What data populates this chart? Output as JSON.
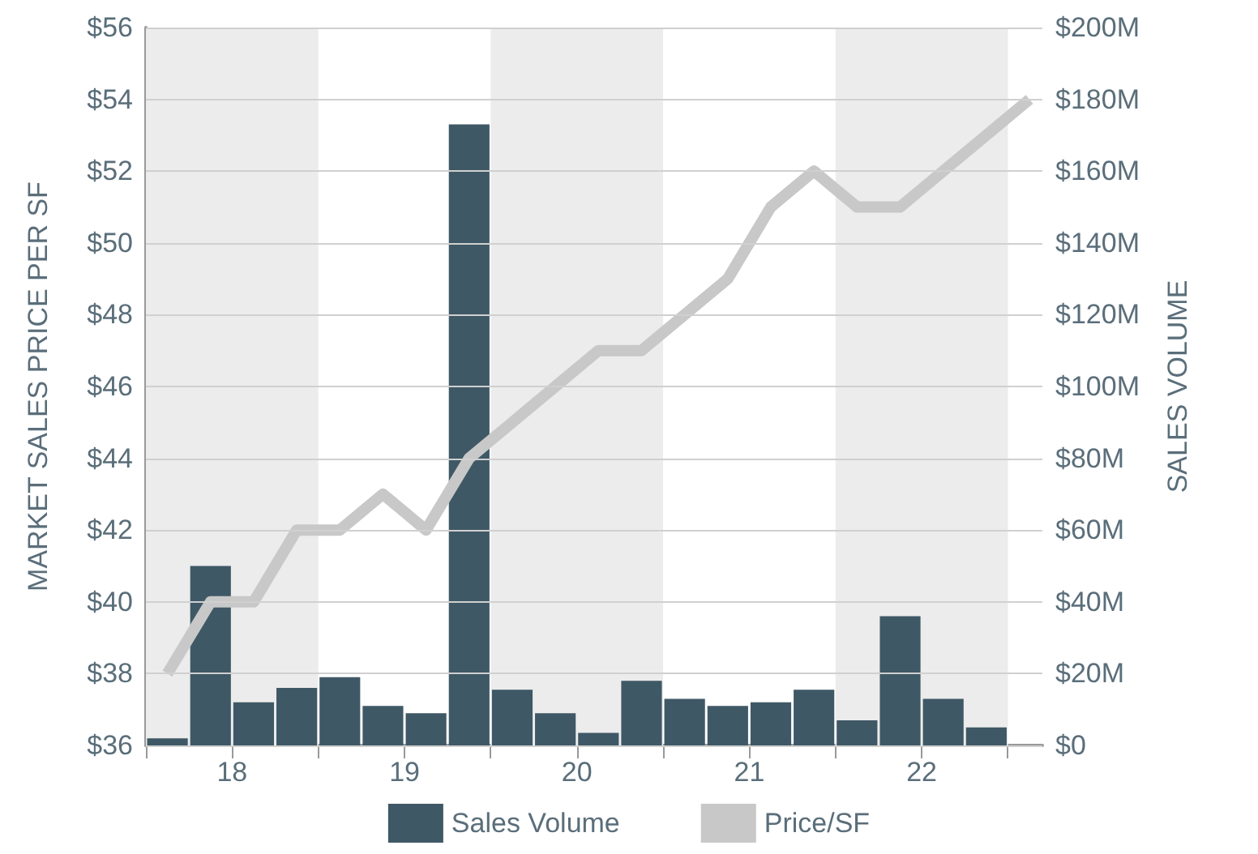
{
  "chart_data": {
    "type": "bar",
    "ylabel": "MARKET SALES PRICE PER SF",
    "y2label": "SALES VOLUME",
    "xlim": [
      17.5,
      22.7
    ],
    "xticks": [
      {
        "value": 17.5,
        "label": null
      },
      18,
      {
        "value": 18.5,
        "label": null
      },
      19,
      {
        "value": 19.5,
        "label": null
      },
      20,
      {
        "value": 20.5,
        "label": null
      },
      21,
      {
        "value": 21.5,
        "label": null
      },
      22,
      {
        "value": 22.5,
        "label": null
      }
    ],
    "ylim": [
      36,
      56
    ],
    "yticks": [
      {
        "value": 36,
        "label": "$36"
      },
      {
        "value": 38,
        "label": "$38"
      },
      {
        "value": 40,
        "label": "$40"
      },
      {
        "value": 42,
        "label": "$42"
      },
      {
        "value": 44,
        "label": "$44"
      },
      {
        "value": 46,
        "label": "$46"
      },
      {
        "value": 48,
        "label": "$48"
      },
      {
        "value": 50,
        "label": "$50"
      },
      {
        "value": 52,
        "label": "$52"
      },
      {
        "value": 54,
        "label": "$54"
      },
      {
        "value": 56,
        "label": "$56"
      }
    ],
    "y2lim": [
      0,
      200
    ],
    "y2ticks": [
      {
        "value": 0,
        "label": "$0"
      },
      {
        "value": 20,
        "label": "$20M"
      },
      {
        "value": 40,
        "label": "$40M"
      },
      {
        "value": 60,
        "label": "$60M"
      },
      {
        "value": 80,
        "label": "$80M"
      },
      {
        "value": 100,
        "label": "$100M"
      },
      {
        "value": 120,
        "label": "$120M"
      },
      {
        "value": 140,
        "label": "$140M"
      },
      {
        "value": 160,
        "label": "$160M"
      },
      {
        "value": 180,
        "label": "$180M"
      },
      {
        "value": 200,
        "label": "$200M"
      }
    ],
    "series": [
      {
        "name": "Sales Volume",
        "axis": "y2",
        "color": "#3f5866",
        "x": [
          17.625,
          17.875,
          18.125,
          18.375,
          18.625,
          18.875,
          19.125,
          19.375,
          19.625,
          19.875,
          20.125,
          20.375,
          20.625,
          20.875,
          21.125,
          21.375,
          21.625,
          21.875,
          22.125,
          22.375
        ],
        "values": [
          2,
          50,
          12,
          16,
          19,
          11,
          9,
          173,
          15.5,
          9,
          3.5,
          18,
          13,
          11,
          12,
          15.5,
          7,
          36,
          13,
          5
        ]
      },
      {
        "name": "Price/SF",
        "type": "line",
        "axis": "y",
        "color": "#c8c8c8",
        "marker": "none",
        "x": [
          17.625,
          17.875,
          18.125,
          18.375,
          18.625,
          18.875,
          19.125,
          19.375,
          19.625,
          19.875,
          20.125,
          20.375,
          20.625,
          20.875,
          21.125,
          21.375,
          21.625,
          21.875,
          22.125,
          22.375,
          22.625
        ],
        "values": [
          38,
          40,
          40,
          42,
          42,
          43,
          42,
          44,
          45,
          46,
          47,
          47,
          48,
          49,
          51,
          52,
          51,
          51,
          52,
          53,
          54
        ]
      }
    ],
    "bands": [
      {
        "axis": "x",
        "from": 17.5,
        "to": 18.5,
        "color": "#ececec"
      },
      {
        "axis": "x",
        "from": 19.5,
        "to": 20.5,
        "color": "#ececec"
      },
      {
        "axis": "x",
        "from": 21.5,
        "to": 22.5,
        "color": "#ececec"
      }
    ],
    "grid": "y",
    "legend": "bottom"
  }
}
